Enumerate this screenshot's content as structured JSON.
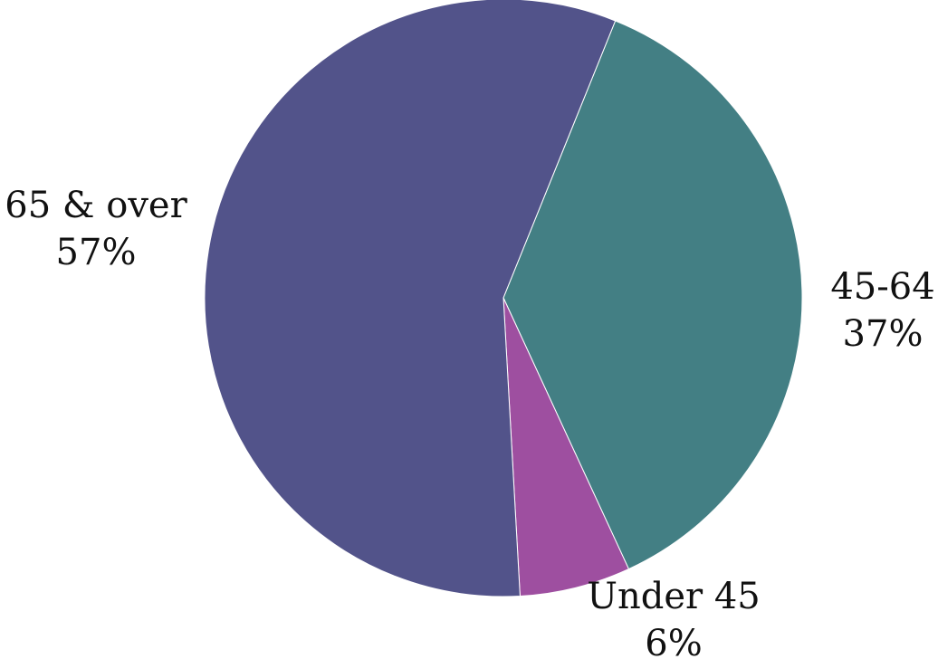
{
  "chart_data": {
    "type": "pie",
    "title": "",
    "slices": [
      {
        "label": "45-64",
        "value": 37,
        "value_label": "37%",
        "color": "#437f84"
      },
      {
        "label": "Under 45",
        "value": 6,
        "value_label": "6%",
        "color": "#9e4fa0"
      },
      {
        "label": "65 & over",
        "value": 57,
        "value_label": "57%",
        "color": "#52538a"
      }
    ],
    "start_angle_deg": 22,
    "direction": "clockwise",
    "legend": "none",
    "labels": "outside"
  }
}
